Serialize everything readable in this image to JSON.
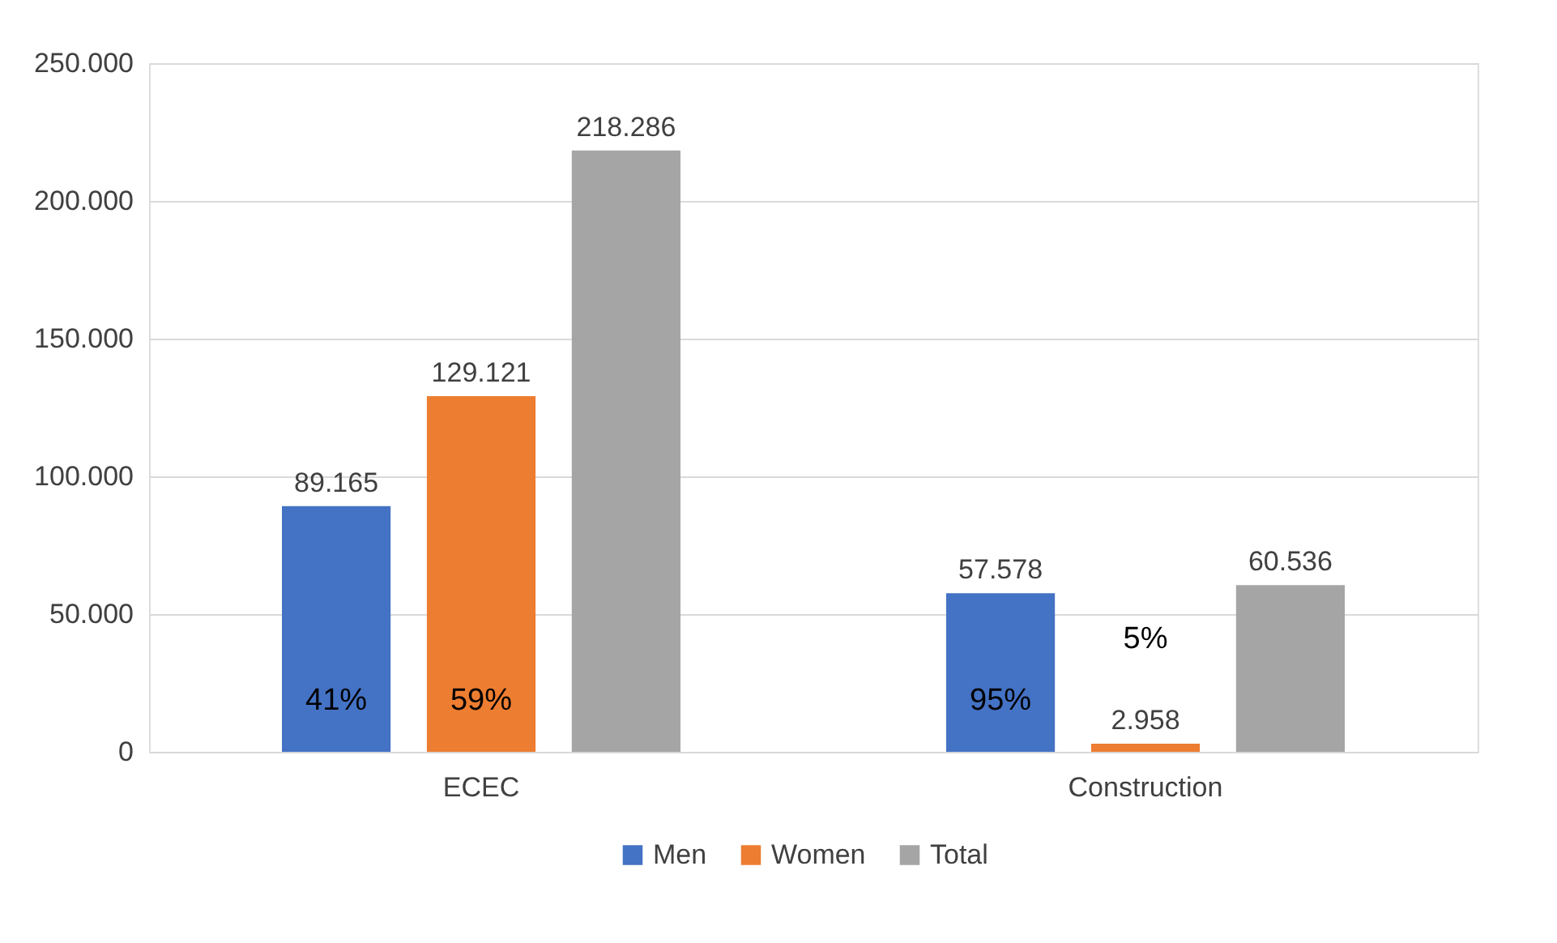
{
  "chart_data": {
    "type": "bar",
    "categories": [
      "ECEC",
      "Construction"
    ],
    "series": [
      {
        "name": "Men",
        "color": "#4472c4",
        "values": [
          89165,
          57578
        ],
        "value_labels": [
          "89.165",
          "57.578"
        ]
      },
      {
        "name": "Women",
        "color": "#ed7d31",
        "values": [
          129121,
          2958
        ],
        "value_labels": [
          "129.121",
          "2.958"
        ]
      },
      {
        "name": "Total",
        "color": "#a5a5a5",
        "values": [
          218286,
          60536
        ],
        "value_labels": [
          "218.286",
          "60.536"
        ]
      }
    ],
    "ylim": [
      0,
      250000
    ],
    "yticks": [
      0,
      {
        "value": 50000,
        "label": "50.000"
      },
      {
        "value": 100000,
        "label": "100.000"
      },
      {
        "value": 150000,
        "label": "150.000"
      },
      {
        "value": 200000,
        "label": "200.000"
      },
      {
        "value": 250000,
        "label": "250.000"
      }
    ],
    "annotations": [
      "41%",
      "59%",
      "95%",
      "5%"
    ],
    "grid": "y",
    "legend": "bottom"
  }
}
